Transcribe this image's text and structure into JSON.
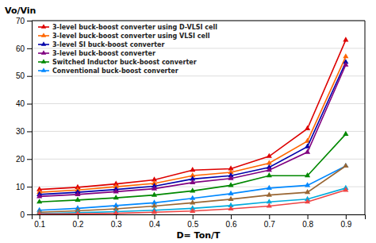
{
  "chart_data": {
    "type": "line",
    "xlabel": "D= Ton/T",
    "ylabel": "Vo/Vin",
    "x": [
      0.1,
      0.2,
      0.3,
      0.4,
      0.5,
      0.6,
      0.7,
      0.8,
      0.9
    ],
    "xlim": [
      0.08,
      0.95
    ],
    "ylim": [
      0,
      70
    ],
    "xticks": [
      0.1,
      0.2,
      0.3,
      0.4,
      0.5,
      0.6,
      0.7,
      0.8,
      0.9
    ],
    "yticks": [
      0,
      10,
      20,
      30,
      40,
      50,
      60,
      70
    ],
    "grid": true,
    "legend": "upper left",
    "marker": "triangle",
    "series": [
      {
        "name": "3-level buck-boost converter using D-VLSI cell",
        "color": "#dd0000",
        "values": [
          9.0,
          9.8,
          11.0,
          12.5,
          16.0,
          16.5,
          21.0,
          31.0,
          63.0
        ]
      },
      {
        "name": "3-level buck-boost converter using VLSI cell",
        "color": "#ff6600",
        "values": [
          8.0,
          8.8,
          10.0,
          11.2,
          14.0,
          15.2,
          18.5,
          26.5,
          57.0
        ]
      },
      {
        "name": "3-level SI buck-boost converter",
        "color": "#0000aa",
        "values": [
          7.2,
          8.0,
          9.0,
          10.2,
          12.8,
          14.0,
          17.0,
          24.5,
          55.0
        ]
      },
      {
        "name": "3-level buck-boost converter",
        "color": "#800080",
        "values": [
          6.5,
          7.2,
          8.2,
          9.3,
          11.5,
          13.0,
          16.0,
          22.5,
          54.0
        ]
      },
      {
        "name": "Switched Inductor buck-boost converter",
        "color": "#008800",
        "values": [
          4.5,
          5.2,
          6.0,
          7.0,
          8.5,
          10.5,
          14.0,
          14.0,
          29.0
        ]
      },
      {
        "name": "Conventional buck-boost converter",
        "color": "#0088ff",
        "values": [
          1.5,
          2.2,
          3.2,
          4.2,
          5.8,
          7.5,
          9.5,
          10.5,
          17.5
        ]
      },
      {
        "color": "#996633",
        "values": [
          0.8,
          1.3,
          2.0,
          3.0,
          4.2,
          5.5,
          7.0,
          8.0,
          17.5
        ]
      },
      {
        "color": "#00aadd",
        "values": [
          0.3,
          0.6,
          1.0,
          1.5,
          2.2,
          3.2,
          4.5,
          5.5,
          9.5
        ]
      },
      {
        "color": "#ee4444",
        "values": [
          0.1,
          0.2,
          0.4,
          0.8,
          1.2,
          2.0,
          3.0,
          4.5,
          8.8
        ]
      }
    ]
  }
}
